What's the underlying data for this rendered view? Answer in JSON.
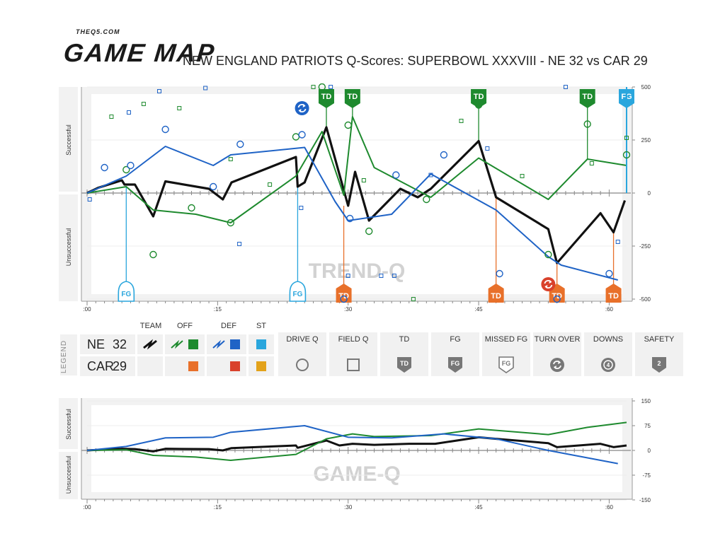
{
  "header": {
    "brand_small": "THEQ5.COM",
    "brand_big": "GAME MAP",
    "title": "NEW ENGLAND PATRIOTS Q-Scores: SUPERBOWL XXXVIII - NE 32 vs CAR 29"
  },
  "colors": {
    "team": "#111111",
    "ne_off": "#1e8a2e",
    "ne_def": "#1f63c6",
    "ne_st": "#2aa6dd",
    "car_off": "#e8702a",
    "car_def": "#d9412b",
    "car_st": "#e3a21a",
    "panel_bg": "#f2f2f2",
    "watermark": "#d2d2d2"
  },
  "legend": {
    "side_label": "LEGEND",
    "headers": [
      "TEAM",
      "OFF",
      "DEF",
      "ST"
    ],
    "teams": [
      {
        "name": "NE",
        "score": "32"
      },
      {
        "name": "CAR",
        "score": "29"
      }
    ],
    "symbols": [
      {
        "label": "DRIVE Q",
        "icon": "drive-circle-icon"
      },
      {
        "label": "FIELD Q",
        "icon": "field-square-icon"
      },
      {
        "label": "TD",
        "icon": "td-badge-icon",
        "text": "TD"
      },
      {
        "label": "FG",
        "icon": "fg-badge-icon",
        "text": "FG"
      },
      {
        "label": "MISSED FG",
        "icon": "missed-fg-badge-icon",
        "text": "FG"
      },
      {
        "label": "TURN OVER",
        "icon": "turnover-icon"
      },
      {
        "label": "DOWNS",
        "icon": "downs-icon",
        "text": "4"
      },
      {
        "label": "SAFETY",
        "icon": "safety-badge-icon",
        "text": "2"
      }
    ]
  },
  "chart_data": [
    {
      "type": "line",
      "name": "trend-q",
      "watermark": "TREND-Q",
      "y_side_labels": {
        "top": "Successful",
        "bottom": "Unsuccessful"
      },
      "xlim": [
        0,
        60
      ],
      "ylim": [
        -500,
        500
      ],
      "x_ticks": [
        {
          "value": 0,
          "label": ":00"
        },
        {
          "value": 15,
          "label": ":15"
        },
        {
          "value": 30,
          "label": ":30"
        },
        {
          "value": 45,
          "label": ":45"
        },
        {
          "value": 60,
          "label": ":60"
        }
      ],
      "y_ticks": [
        {
          "value": 500,
          "label": "500"
        },
        {
          "value": 250,
          "label": "250"
        },
        {
          "value": 0,
          "label": "0"
        },
        {
          "value": -250,
          "label": "-250"
        },
        {
          "value": -500,
          "label": "-500"
        }
      ],
      "series": [
        {
          "role": "team",
          "color_key": "team",
          "width": 3.2,
          "points": [
            [
              0,
              0
            ],
            [
              1.3,
              25
            ],
            [
              4,
              60
            ],
            [
              4.3,
              40
            ],
            [
              5.5,
              40
            ],
            [
              7.6,
              -110
            ],
            [
              9,
              55
            ],
            [
              14,
              20
            ],
            [
              15.6,
              -30
            ],
            [
              16.6,
              50
            ],
            [
              24,
              170
            ],
            [
              24.2,
              30
            ],
            [
              25,
              50
            ],
            [
              27.5,
              310
            ],
            [
              30,
              -60
            ],
            [
              30.8,
              100
            ],
            [
              32.4,
              -130
            ],
            [
              36,
              20
            ],
            [
              38,
              -20
            ],
            [
              39.5,
              20
            ],
            [
              45,
              245
            ],
            [
              47,
              -20
            ],
            [
              53,
              -170
            ],
            [
              54,
              -330
            ],
            [
              59,
              -95
            ],
            [
              60.5,
              -185
            ],
            [
              61.8,
              -35
            ]
          ]
        },
        {
          "role": "offense",
          "color_key": "ne_off",
          "width": 2,
          "points": [
            [
              0,
              0
            ],
            [
              4.5,
              30
            ],
            [
              7.6,
              -80
            ],
            [
              12.5,
              -100
            ],
            [
              16.5,
              -140
            ],
            [
              24,
              80
            ],
            [
              27,
              290
            ],
            [
              29.5,
              -10
            ],
            [
              30.5,
              360
            ],
            [
              33,
              120
            ],
            [
              39.5,
              -20
            ],
            [
              45,
              165
            ],
            [
              53,
              -30
            ],
            [
              57.5,
              160
            ],
            [
              62,
              130
            ]
          ]
        },
        {
          "role": "defense",
          "color_key": "ne_def",
          "width": 2,
          "points": [
            [
              0,
              0
            ],
            [
              4.5,
              80
            ],
            [
              9,
              220
            ],
            [
              14.5,
              130
            ],
            [
              16.5,
              180
            ],
            [
              25,
              215
            ],
            [
              28.5,
              -40
            ],
            [
              30,
              -130
            ],
            [
              35,
              -100
            ],
            [
              39.5,
              90
            ],
            [
              47,
              -80
            ],
            [
              53,
              -300
            ],
            [
              54.5,
              -340
            ],
            [
              61,
              -410
            ]
          ]
        },
        {
          "role": "special-teams",
          "color_key": "ne_st",
          "width": 2,
          "points": [
            [
              62,
              0
            ],
            [
              62,
              500
            ]
          ]
        }
      ],
      "drive_q_circles": [
        {
          "x": 2,
          "y": 120,
          "c": "ne_def"
        },
        {
          "x": 4.5,
          "y": 110,
          "c": "ne_off"
        },
        {
          "x": 5,
          "y": 130,
          "c": "ne_def"
        },
        {
          "x": 9,
          "y": 300,
          "c": "ne_def"
        },
        {
          "x": 7.6,
          "y": -290,
          "c": "ne_off"
        },
        {
          "x": 12,
          "y": -70,
          "c": "ne_off"
        },
        {
          "x": 14.5,
          "y": 30,
          "c": "ne_def"
        },
        {
          "x": 16.5,
          "y": -140,
          "c": "ne_off"
        },
        {
          "x": 17.6,
          "y": 230,
          "c": "ne_def"
        },
        {
          "x": 24,
          "y": 265,
          "c": "ne_off"
        },
        {
          "x": 24.7,
          "y": 275,
          "c": "ne_def"
        },
        {
          "x": 27,
          "y": 500,
          "c": "ne_off"
        },
        {
          "x": 30,
          "y": 320,
          "c": "ne_off"
        },
        {
          "x": 30.2,
          "y": -120,
          "c": "ne_def"
        },
        {
          "x": 32.4,
          "y": -180,
          "c": "ne_off"
        },
        {
          "x": 35.5,
          "y": 85,
          "c": "ne_def"
        },
        {
          "x": 39,
          "y": -30,
          "c": "ne_off"
        },
        {
          "x": 41,
          "y": 180,
          "c": "ne_def"
        },
        {
          "x": 45,
          "y": 415,
          "c": "ne_off"
        },
        {
          "x": 47.4,
          "y": -380,
          "c": "ne_def"
        },
        {
          "x": 53,
          "y": -290,
          "c": "ne_off"
        },
        {
          "x": 54,
          "y": -500,
          "c": "ne_def"
        },
        {
          "x": 57.5,
          "y": 325,
          "c": "ne_off"
        },
        {
          "x": 60,
          "y": -380,
          "c": "ne_def"
        },
        {
          "x": 62,
          "y": 180,
          "c": "ne_off"
        },
        {
          "x": 29.5,
          "y": -500,
          "c": "ne_def"
        }
      ],
      "field_q_squares": [
        {
          "x": 0.3,
          "y": -30,
          "c": "ne_def"
        },
        {
          "x": 2.8,
          "y": 360,
          "c": "ne_off"
        },
        {
          "x": 4.8,
          "y": 380,
          "c": "ne_def"
        },
        {
          "x": 6.5,
          "y": 420,
          "c": "ne_off"
        },
        {
          "x": 8.3,
          "y": 480,
          "c": "ne_def"
        },
        {
          "x": 10.6,
          "y": 400,
          "c": "ne_off"
        },
        {
          "x": 13.6,
          "y": 495,
          "c": "ne_def"
        },
        {
          "x": 16.5,
          "y": 160,
          "c": "ne_off"
        },
        {
          "x": 17.5,
          "y": -240,
          "c": "ne_def"
        },
        {
          "x": 21,
          "y": 40,
          "c": "ne_off"
        },
        {
          "x": 24.6,
          "y": -70,
          "c": "ne_def"
        },
        {
          "x": 26,
          "y": 500,
          "c": "ne_off"
        },
        {
          "x": 28,
          "y": 500,
          "c": "ne_def"
        },
        {
          "x": 30,
          "y": -390,
          "c": "ne_def"
        },
        {
          "x": 33.8,
          "y": -390,
          "c": "ne_def"
        },
        {
          "x": 35.3,
          "y": -390,
          "c": "ne_def"
        },
        {
          "x": 31.8,
          "y": 60,
          "c": "ne_off"
        },
        {
          "x": 37.5,
          "y": -500,
          "c": "ne_off"
        },
        {
          "x": 39.5,
          "y": 85,
          "c": "ne_def"
        },
        {
          "x": 43,
          "y": 340,
          "c": "ne_off"
        },
        {
          "x": 46,
          "y": 210,
          "c": "ne_def"
        },
        {
          "x": 50,
          "y": 80,
          "c": "ne_off"
        },
        {
          "x": 55,
          "y": 500,
          "c": "ne_def"
        },
        {
          "x": 58,
          "y": 140,
          "c": "ne_off"
        },
        {
          "x": 61,
          "y": -230,
          "c": "ne_def"
        },
        {
          "x": 62,
          "y": 260,
          "c": "ne_off"
        }
      ],
      "scoring_events": [
        {
          "type": "TD",
          "x": 27.5,
          "team": "NE",
          "color_key": "ne_off",
          "line_to": 310
        },
        {
          "type": "TD",
          "x": 30.5,
          "team": "NE",
          "color_key": "ne_off",
          "line_to": 360
        },
        {
          "type": "TD",
          "x": 45,
          "team": "NE",
          "color_key": "ne_off",
          "line_to": 245
        },
        {
          "type": "TD",
          "x": 57.5,
          "team": "NE",
          "color_key": "ne_off",
          "line_to": 160
        },
        {
          "type": "FG",
          "x": 62,
          "team": "NE",
          "color_key": "ne_st",
          "line_to": 0
        },
        {
          "type": "FG",
          "x": 4.5,
          "team": "CAR",
          "color_key": "ne_st",
          "line_to": 30
        },
        {
          "type": "FG",
          "x": 24.2,
          "team": "CAR",
          "color_key": "ne_st",
          "line_to": 30
        },
        {
          "type": "TD",
          "x": 29.5,
          "team": "CAR",
          "color_key": "car_off",
          "line_to": -60
        },
        {
          "type": "TD",
          "x": 47,
          "team": "CAR",
          "color_key": "car_off",
          "line_to": -20
        },
        {
          "type": "TD",
          "x": 54,
          "team": "CAR",
          "color_key": "car_off",
          "line_to": -330
        },
        {
          "type": "TD",
          "x": 60.5,
          "team": "CAR",
          "color_key": "car_off",
          "line_to": -185
        }
      ],
      "turnovers": [
        {
          "x": 24.7,
          "y": 400,
          "team": "NE",
          "color_key": "ne_def"
        },
        {
          "x": 53,
          "y": -430,
          "team": "CAR",
          "color_key": "car_def"
        }
      ]
    },
    {
      "type": "line",
      "name": "game-q",
      "watermark": "GAME-Q",
      "y_side_labels": {
        "top": "Successful",
        "bottom": "Unsuccessful"
      },
      "xlim": [
        0,
        60
      ],
      "ylim": [
        -150,
        150
      ],
      "x_ticks": [
        {
          "value": 0,
          "label": ":00"
        },
        {
          "value": 15,
          "label": ":15"
        },
        {
          "value": 30,
          "label": ":30"
        },
        {
          "value": 45,
          "label": ":45"
        },
        {
          "value": 60,
          "label": ":60"
        }
      ],
      "y_ticks": [
        {
          "value": 150,
          "label": "150"
        },
        {
          "value": 75,
          "label": "75"
        },
        {
          "value": 0,
          "label": "0"
        },
        {
          "value": -75,
          "label": "-75"
        },
        {
          "value": -150,
          "label": "-150"
        }
      ],
      "series": [
        {
          "role": "team",
          "color_key": "team",
          "width": 3,
          "points": [
            [
              0,
              0
            ],
            [
              4,
              5
            ],
            [
              5.5,
              4
            ],
            [
              7.6,
              -3
            ],
            [
              9,
              5
            ],
            [
              14,
              4
            ],
            [
              15.6,
              0
            ],
            [
              16.6,
              7
            ],
            [
              24,
              15
            ],
            [
              24.2,
              8
            ],
            [
              27.5,
              30
            ],
            [
              29,
              15
            ],
            [
              30.5,
              20
            ],
            [
              33,
              17
            ],
            [
              37,
              20
            ],
            [
              40,
              20
            ],
            [
              45,
              40
            ],
            [
              47,
              35
            ],
            [
              53,
              22
            ],
            [
              54,
              10
            ],
            [
              59,
              20
            ],
            [
              60.5,
              10
            ],
            [
              62,
              15
            ]
          ]
        },
        {
          "role": "offense",
          "color_key": "ne_off",
          "width": 2,
          "points": [
            [
              0,
              0
            ],
            [
              4.5,
              2
            ],
            [
              7.6,
              -15
            ],
            [
              12.5,
              -20
            ],
            [
              16.5,
              -30
            ],
            [
              24,
              -12
            ],
            [
              27.5,
              35
            ],
            [
              30.5,
              50
            ],
            [
              33,
              42
            ],
            [
              39.5,
              45
            ],
            [
              45,
              65
            ],
            [
              53,
              48
            ],
            [
              57.5,
              70
            ],
            [
              62,
              85
            ]
          ]
        },
        {
          "role": "defense",
          "color_key": "ne_def",
          "width": 2,
          "points": [
            [
              0,
              0
            ],
            [
              4.5,
              12
            ],
            [
              9,
              38
            ],
            [
              14.5,
              40
            ],
            [
              16.5,
              55
            ],
            [
              25,
              75
            ],
            [
              30,
              40
            ],
            [
              35,
              38
            ],
            [
              41,
              50
            ],
            [
              47,
              35
            ],
            [
              53,
              0
            ],
            [
              61,
              -40
            ]
          ]
        }
      ]
    }
  ]
}
